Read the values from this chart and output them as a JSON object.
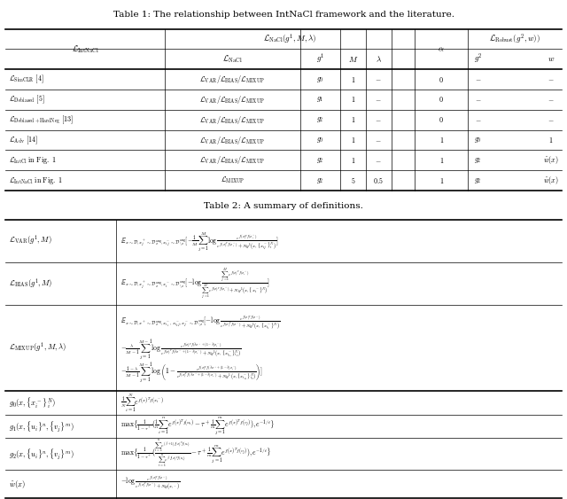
{
  "title1": "Table 1: The relationship between IntNaCl framework and the literature.",
  "title2": "Table 2: A summary of definitions.",
  "figsize": [
    6.4,
    5.63
  ],
  "dpi": 100,
  "background": "#ffffff"
}
